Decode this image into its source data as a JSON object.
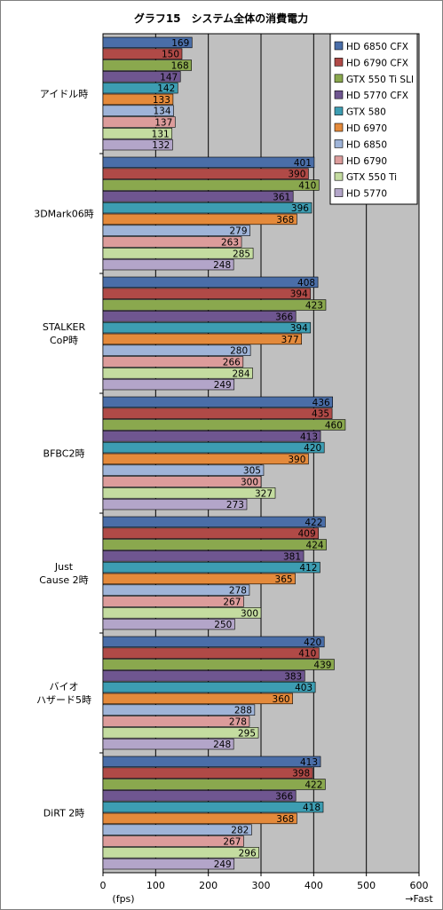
{
  "chart_data": {
    "type": "bar",
    "orientation": "horizontal",
    "title": "グラフ15　システム全体の消費電力",
    "xlabel": "(fps)",
    "xlabel_right": "→Fast",
    "xlim": [
      0,
      600
    ],
    "xticks": [
      0,
      100,
      200,
      300,
      400,
      500,
      600
    ],
    "grid": true,
    "legend_position": "top-right",
    "categories": [
      [
        "アイドル時"
      ],
      [
        "3DMark06時"
      ],
      [
        "STALKER",
        "CoP時"
      ],
      [
        "BFBC2時"
      ],
      [
        "Just",
        "Cause 2時"
      ],
      [
        "バイオ",
        "ハザード5時"
      ],
      [
        "DiRT 2時"
      ]
    ],
    "series": [
      {
        "name": "HD 6850 CFX",
        "color": "#4a6ea8",
        "values": [
          169,
          401,
          408,
          436,
          422,
          420,
          413
        ]
      },
      {
        "name": "HD 6790 CFX",
        "color": "#b04a47",
        "values": [
          150,
          390,
          394,
          435,
          409,
          410,
          398
        ]
      },
      {
        "name": "GTX 550 Ti SLI",
        "color": "#8aa84e",
        "values": [
          168,
          410,
          423,
          460,
          424,
          439,
          422
        ]
      },
      {
        "name": "HD 5770 CFX",
        "color": "#6f5690",
        "values": [
          147,
          361,
          366,
          413,
          381,
          383,
          366
        ]
      },
      {
        "name": "GTX 580",
        "color": "#3d9db2",
        "values": [
          142,
          396,
          394,
          420,
          412,
          403,
          418
        ]
      },
      {
        "name": "HD 6970",
        "color": "#e48a3b",
        "values": [
          133,
          368,
          377,
          390,
          365,
          360,
          368
        ]
      },
      {
        "name": "HD 6850",
        "color": "#9fb4d8",
        "values": [
          134,
          279,
          280,
          305,
          278,
          288,
          282
        ]
      },
      {
        "name": "HD 6790",
        "color": "#dc9c9b",
        "values": [
          137,
          263,
          266,
          300,
          267,
          278,
          267
        ]
      },
      {
        "name": "GTX 550 Ti",
        "color": "#c4dca0",
        "values": [
          131,
          285,
          284,
          327,
          300,
          295,
          296
        ]
      },
      {
        "name": "HD 5770",
        "color": "#b3a5c9",
        "values": [
          132,
          248,
          249,
          273,
          250,
          248,
          249
        ]
      }
    ]
  }
}
